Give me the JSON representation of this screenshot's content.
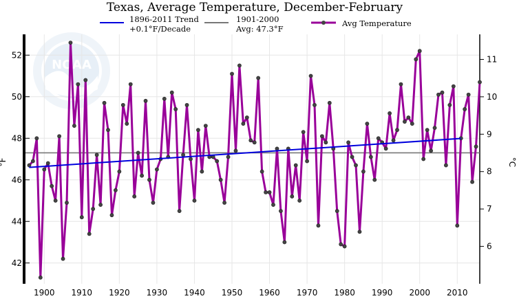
{
  "chart_data": {
    "type": "line",
    "title": "Texas, Average Temperature, December-February",
    "xlabel": "",
    "ylabel_left": "°F",
    "ylabel_right": "°C",
    "xlim": [
      1895,
      2016
    ],
    "ylim": [
      41.0,
      53.0
    ],
    "y2lim": [
      5.0,
      11.67
    ],
    "grid": true,
    "legend_placement": "top",
    "x_ticks": [
      1900,
      1910,
      1920,
      1930,
      1940,
      1950,
      1960,
      1970,
      1980,
      1990,
      2000,
      2010
    ],
    "y_ticks": [
      42,
      44,
      46,
      48,
      50,
      52
    ],
    "y2_ticks": [
      6,
      7,
      8,
      9,
      10,
      11
    ],
    "legend": {
      "trend_line1": "1896-2011 Trend",
      "trend_line2": "+0.1°F/Decade",
      "avg_line1": "1901-2000",
      "avg_line2": "Avg: 47.3°F",
      "series_label": "Avg Temperature"
    },
    "colors": {
      "series": "#990099",
      "marker": "#444444",
      "trend": "#0000dd",
      "average": "#777777",
      "grid": "#e6e6e6"
    },
    "series": [
      {
        "name": "Avg Temperature",
        "x": [
          1896,
          1897,
          1898,
          1899,
          1900,
          1901,
          1902,
          1903,
          1904,
          1905,
          1906,
          1907,
          1908,
          1909,
          1910,
          1911,
          1912,
          1913,
          1914,
          1915,
          1916,
          1917,
          1918,
          1919,
          1920,
          1921,
          1922,
          1923,
          1924,
          1925,
          1926,
          1927,
          1928,
          1929,
          1930,
          1931,
          1932,
          1933,
          1934,
          1935,
          1936,
          1937,
          1938,
          1939,
          1940,
          1941,
          1942,
          1943,
          1944,
          1945,
          1946,
          1947,
          1948,
          1949,
          1950,
          1951,
          1952,
          1953,
          1954,
          1955,
          1956,
          1957,
          1958,
          1959,
          1960,
          1961,
          1962,
          1963,
          1964,
          1965,
          1966,
          1967,
          1968,
          1969,
          1970,
          1971,
          1972,
          1973,
          1974,
          1975,
          1976,
          1977,
          1978,
          1979,
          1980,
          1981,
          1982,
          1983,
          1984,
          1985,
          1986,
          1987,
          1988,
          1989,
          1990,
          1991,
          1992,
          1993,
          1994,
          1995,
          1996,
          1997,
          1998,
          1999,
          2000,
          2001,
          2002,
          2003,
          2004,
          2005,
          2006,
          2007,
          2008,
          2009,
          2010,
          2011,
          2012,
          2013,
          2014,
          2015,
          2016
        ],
        "values": [
          46.7,
          46.9,
          48.0,
          41.3,
          46.5,
          46.8,
          45.7,
          45.0,
          48.1,
          42.2,
          44.9,
          52.6,
          48.6,
          50.6,
          44.2,
          50.8,
          43.4,
          44.6,
          47.2,
          44.8,
          49.7,
          48.4,
          44.3,
          45.5,
          46.4,
          49.6,
          48.7,
          50.6,
          45.2,
          47.3,
          46.2,
          49.8,
          46.0,
          44.9,
          46.5,
          47.0,
          49.9,
          47.1,
          50.2,
          49.4,
          44.5,
          47.2,
          49.6,
          47.0,
          45.0,
          48.4,
          46.4,
          48.6,
          47.1,
          47.1,
          46.9,
          46.0,
          44.9,
          47.1,
          51.1,
          47.4,
          51.5,
          48.7,
          49.0,
          47.9,
          47.8,
          50.9,
          46.4,
          45.4,
          45.4,
          44.8,
          47.5,
          44.5,
          43.0,
          47.5,
          45.2,
          46.7,
          45.0,
          48.3,
          46.9,
          51.0,
          49.6,
          43.8,
          48.1,
          47.8,
          49.7,
          47.5,
          44.5,
          42.9,
          42.8,
          47.8,
          47.1,
          46.7,
          43.5,
          46.4,
          48.7,
          47.1,
          46.0,
          48.0,
          47.8,
          47.5,
          49.2,
          47.9,
          48.4,
          50.6,
          48.8,
          49.0,
          48.7,
          51.8,
          52.2,
          47.0,
          48.4,
          47.4,
          48.5,
          50.1,
          50.2,
          46.7,
          49.6,
          50.5,
          43.8,
          48.0,
          49.4,
          50.1,
          45.9,
          47.6,
          50.7
        ]
      }
    ],
    "trend": {
      "x": [
        1896,
        2011
      ],
      "y": [
        46.6,
        47.99
      ]
    },
    "average": {
      "x": [
        1895,
        2016
      ],
      "y": 47.3
    }
  }
}
